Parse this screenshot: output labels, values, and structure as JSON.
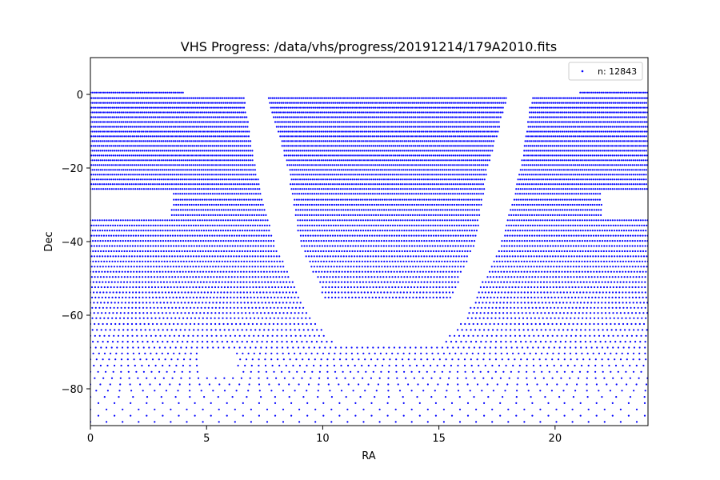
{
  "chart_data": {
    "type": "scatter",
    "title": "VHS Progress: /data/vhs/progress/20191214/179A2010.fits",
    "xlabel": "RA",
    "ylabel": "Dec",
    "xlim": [
      0,
      24
    ],
    "ylim": [
      -90,
      10
    ],
    "x_ticks": [
      0,
      5,
      10,
      15,
      20
    ],
    "y_ticks": [
      0,
      -20,
      -40,
      -60,
      -80
    ],
    "x_tick_labels": [
      "0",
      "5",
      "10",
      "15",
      "20"
    ],
    "y_tick_labels": [
      "0",
      "−20",
      "−40",
      "−60",
      "−80"
    ],
    "grid": false,
    "legend": {
      "placement": "upper-right",
      "label": "n: 12843"
    },
    "series": [
      {
        "name": "n: 12843",
        "color": "#0000ff",
        "marker": "point",
        "count": 12843,
        "dec_rows": [
          0.5,
          -1.0,
          -2.3,
          -3.6,
          -4.9,
          -6.2,
          -7.5,
          -8.8,
          -10.1,
          -11.4,
          -12.7,
          -14.0,
          -15.3,
          -16.6,
          -17.9,
          -19.2,
          -20.5,
          -21.8,
          -23.1,
          -24.4,
          -25.7,
          -27.0,
          -28.6,
          -30.0,
          -31.4,
          -32.8,
          -34.2,
          -35.6,
          -37.0,
          -38.4,
          -39.8,
          -41.2,
          -42.6,
          -44.0,
          -45.4,
          -46.8,
          -48.2,
          -49.6,
          -51.0,
          -52.4,
          -53.8,
          -55.2,
          -56.6,
          -58.0,
          -59.4,
          -60.8,
          -62.4,
          -64.0,
          -65.6,
          -67.2,
          -68.8,
          -70.4,
          -72.0,
          -73.7,
          -75.4,
          -77.1,
          -78.8,
          -80.5,
          -82.2,
          -83.9,
          -85.6,
          -87.3,
          -89.0
        ],
        "coverage_rule": {
          "full_ra_range": [
            0.0,
            24.0
          ],
          "ra_step_at_equator": 0.083,
          "gaps": [
            {
              "dec_range": [
                -27.0,
                -34.0
              ],
              "ra_ranges": [
                [
                  0.0,
                  3.5
                ],
                [
                  22.0,
                  24.0
                ]
              ]
            },
            {
              "dec_range": [
                0.5,
                0.5
              ],
              "ra_ranges": [
                [
                  4.0,
                  21.0
                ]
              ]
            },
            {
              "dec_range": [
                -70.0,
                -77.0
              ],
              "ra_ranges": [
                [
                  4.8,
                  6.3
                ]
              ]
            }
          ],
          "unobserved_bands": [
            {
              "dec": 0.0,
              "ra_left": 6.6,
              "ra_right": 7.6
            },
            {
              "dec": -20.0,
              "ra_left": 7.1,
              "ra_right": 8.5
            },
            {
              "dec": -40.0,
              "ra_left": 7.9,
              "ra_right": 9.0
            },
            {
              "dec": -60.0,
              "ra_left": 9.4,
              "ra_right": 10.4
            },
            {
              "dec": -68.0,
              "ra_left": 10.5,
              "ra_right": 10.5
            }
          ],
          "inner_region_max_dec": -56.0,
          "gap_mirror_ra": 12.8
        }
      }
    ]
  }
}
